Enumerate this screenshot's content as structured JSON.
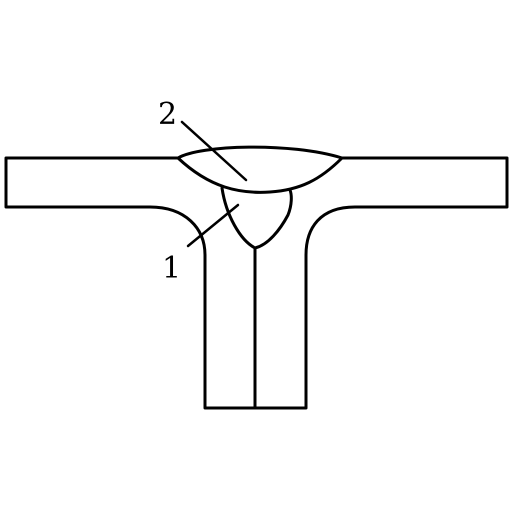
{
  "diagram": {
    "labels": [
      {
        "id": "callout-1",
        "text": "1"
      },
      {
        "id": "callout-2",
        "text": "2"
      }
    ],
    "colors": {
      "background": "#ffffff",
      "line": "#000000"
    }
  }
}
